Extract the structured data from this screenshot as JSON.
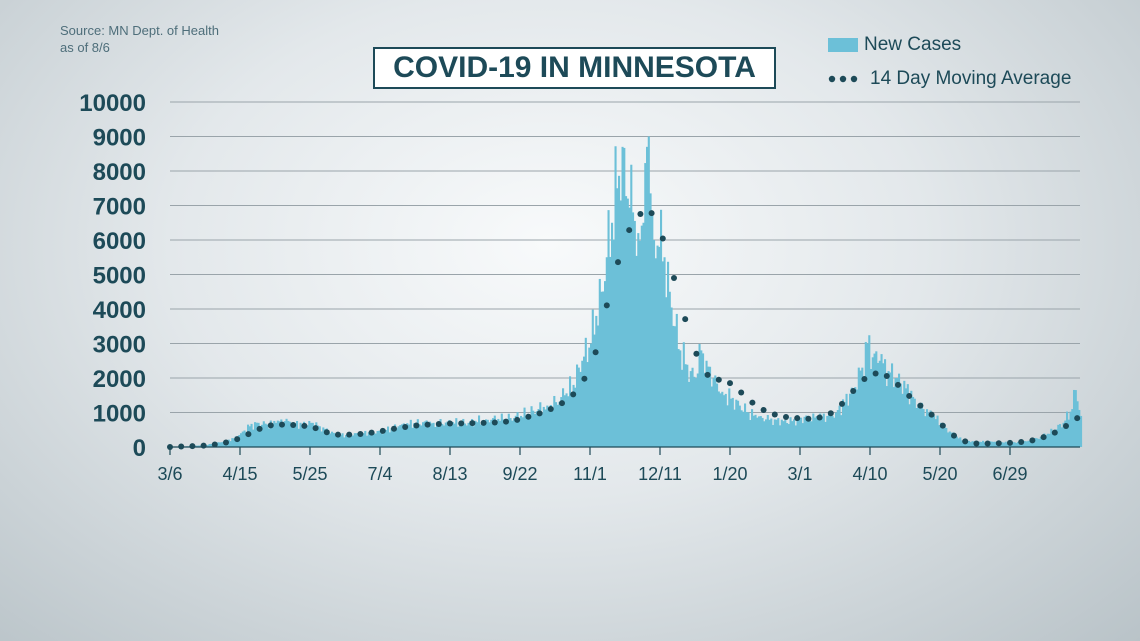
{
  "source": {
    "line1": "Source: MN Dept. of Health",
    "line2": "as of 8/6"
  },
  "colors": {
    "bar": "#6cc0d8",
    "avg": "#1d4a58",
    "grid": "#9aa4aa",
    "text": "#1d4a58"
  },
  "chart_data": {
    "type": "bar",
    "title": "COVID-19 IN MINNESOTA",
    "xlabel": "",
    "ylabel": "",
    "ylim": [
      0,
      10000
    ],
    "yticks": [
      0,
      1000,
      2000,
      3000,
      4000,
      5000,
      6000,
      7000,
      8000,
      9000,
      10000
    ],
    "x_tick_labels": [
      "3/6",
      "4/15",
      "5/25",
      "7/4",
      "8/13",
      "9/22",
      "11/1",
      "12/11",
      "1/20",
      "3/1",
      "4/10",
      "5/20",
      "6/29"
    ],
    "x_tick_day_offsets": [
      0,
      40,
      80,
      120,
      160,
      200,
      240,
      280,
      320,
      360,
      400,
      440,
      480
    ],
    "start_date": "2020-03-06",
    "grid": "horizontal",
    "legend": "top-right",
    "series": [
      {
        "name": "New Cases",
        "type": "bar",
        "points": [
          [
            0,
            5
          ],
          [
            10,
            20
          ],
          [
            20,
            60
          ],
          [
            30,
            150
          ],
          [
            36,
            250
          ],
          [
            40,
            400
          ],
          [
            45,
            600
          ],
          [
            50,
            700
          ],
          [
            55,
            650
          ],
          [
            60,
            700
          ],
          [
            65,
            750
          ],
          [
            70,
            700
          ],
          [
            75,
            650
          ],
          [
            80,
            700
          ],
          [
            85,
            600
          ],
          [
            90,
            450
          ],
          [
            95,
            350
          ],
          [
            100,
            350
          ],
          [
            110,
            400
          ],
          [
            120,
            450
          ],
          [
            130,
            600
          ],
          [
            140,
            700
          ],
          [
            150,
            700
          ],
          [
            160,
            700
          ],
          [
            170,
            700
          ],
          [
            180,
            800
          ],
          [
            190,
            800
          ],
          [
            200,
            900
          ],
          [
            210,
            1100
          ],
          [
            215,
            1200
          ],
          [
            220,
            1300
          ],
          [
            225,
            1500
          ],
          [
            230,
            1800
          ],
          [
            235,
            2500
          ],
          [
            240,
            3000
          ],
          [
            243,
            3800
          ],
          [
            246,
            4500
          ],
          [
            249,
            5500
          ],
          [
            252,
            6500
          ],
          [
            255,
            7500
          ],
          [
            258,
            8700
          ],
          [
            261,
            7200
          ],
          [
            264,
            6800
          ],
          [
            267,
            6200
          ],
          [
            270,
            6500
          ],
          [
            273,
            9000
          ],
          [
            276,
            6000
          ],
          [
            279,
            5800
          ],
          [
            282,
            5500
          ],
          [
            285,
            4500
          ],
          [
            288,
            3500
          ],
          [
            291,
            2800
          ],
          [
            294,
            2400
          ],
          [
            297,
            2200
          ],
          [
            300,
            2000
          ],
          [
            303,
            2800
          ],
          [
            306,
            2500
          ],
          [
            310,
            2000
          ],
          [
            315,
            1600
          ],
          [
            320,
            1400
          ],
          [
            325,
            1200
          ],
          [
            330,
            1000
          ],
          [
            335,
            850
          ],
          [
            340,
            800
          ],
          [
            345,
            800
          ],
          [
            350,
            750
          ],
          [
            355,
            750
          ],
          [
            360,
            850
          ],
          [
            365,
            850
          ],
          [
            370,
            850
          ],
          [
            375,
            900
          ],
          [
            380,
            1000
          ],
          [
            385,
            1300
          ],
          [
            390,
            1700
          ],
          [
            395,
            2300
          ],
          [
            398,
            3000
          ],
          [
            401,
            2600
          ],
          [
            405,
            2500
          ],
          [
            410,
            2200
          ],
          [
            415,
            2000
          ],
          [
            420,
            1700
          ],
          [
            425,
            1400
          ],
          [
            430,
            1100
          ],
          [
            435,
            900
          ],
          [
            440,
            700
          ],
          [
            445,
            450
          ],
          [
            450,
            250
          ],
          [
            455,
            180
          ],
          [
            460,
            150
          ],
          [
            470,
            150
          ],
          [
            480,
            120
          ],
          [
            490,
            180
          ],
          [
            495,
            250
          ],
          [
            500,
            350
          ],
          [
            505,
            500
          ],
          [
            510,
            700
          ],
          [
            515,
            1100
          ],
          [
            517,
            1650
          ],
          [
            520,
            900
          ]
        ]
      },
      {
        "name": "14 Day Moving Average",
        "type": "line",
        "points": [
          [
            0,
            0
          ],
          [
            10,
            20
          ],
          [
            20,
            40
          ],
          [
            30,
            100
          ],
          [
            35,
            180
          ],
          [
            40,
            250
          ],
          [
            45,
            380
          ],
          [
            50,
            500
          ],
          [
            55,
            600
          ],
          [
            60,
            650
          ],
          [
            65,
            650
          ],
          [
            70,
            640
          ],
          [
            75,
            620
          ],
          [
            80,
            600
          ],
          [
            85,
            520
          ],
          [
            90,
            420
          ],
          [
            95,
            360
          ],
          [
            100,
            350
          ],
          [
            110,
            380
          ],
          [
            120,
            450
          ],
          [
            130,
            550
          ],
          [
            140,
            620
          ],
          [
            150,
            660
          ],
          [
            160,
            680
          ],
          [
            170,
            690
          ],
          [
            180,
            700
          ],
          [
            190,
            720
          ],
          [
            200,
            800
          ],
          [
            205,
            880
          ],
          [
            210,
            950
          ],
          [
            215,
            1050
          ],
          [
            220,
            1150
          ],
          [
            225,
            1300
          ],
          [
            230,
            1500
          ],
          [
            235,
            1800
          ],
          [
            240,
            2300
          ],
          [
            245,
            3000
          ],
          [
            250,
            4200
          ],
          [
            255,
            5200
          ],
          [
            260,
            6000
          ],
          [
            265,
            6600
          ],
          [
            270,
            6800
          ],
          [
            275,
            6800
          ],
          [
            280,
            6300
          ],
          [
            285,
            5500
          ],
          [
            290,
            4500
          ],
          [
            295,
            3600
          ],
          [
            300,
            2800
          ],
          [
            305,
            2200
          ],
          [
            310,
            1950
          ],
          [
            315,
            1950
          ],
          [
            320,
            1850
          ],
          [
            325,
            1650
          ],
          [
            330,
            1400
          ],
          [
            335,
            1200
          ],
          [
            340,
            1050
          ],
          [
            345,
            950
          ],
          [
            350,
            880
          ],
          [
            355,
            850
          ],
          [
            360,
            830
          ],
          [
            365,
            820
          ],
          [
            370,
            840
          ],
          [
            375,
            900
          ],
          [
            380,
            1050
          ],
          [
            385,
            1300
          ],
          [
            390,
            1600
          ],
          [
            395,
            1900
          ],
          [
            400,
            2100
          ],
          [
            405,
            2150
          ],
          [
            410,
            2050
          ],
          [
            415,
            1850
          ],
          [
            420,
            1600
          ],
          [
            425,
            1350
          ],
          [
            430,
            1150
          ],
          [
            435,
            950
          ],
          [
            440,
            700
          ],
          [
            445,
            450
          ],
          [
            450,
            250
          ],
          [
            455,
            150
          ],
          [
            460,
            100
          ],
          [
            470,
            100
          ],
          [
            480,
            120
          ],
          [
            490,
            160
          ],
          [
            495,
            220
          ],
          [
            500,
            300
          ],
          [
            505,
            400
          ],
          [
            510,
            550
          ],
          [
            515,
            700
          ],
          [
            520,
            900
          ]
        ]
      }
    ]
  }
}
